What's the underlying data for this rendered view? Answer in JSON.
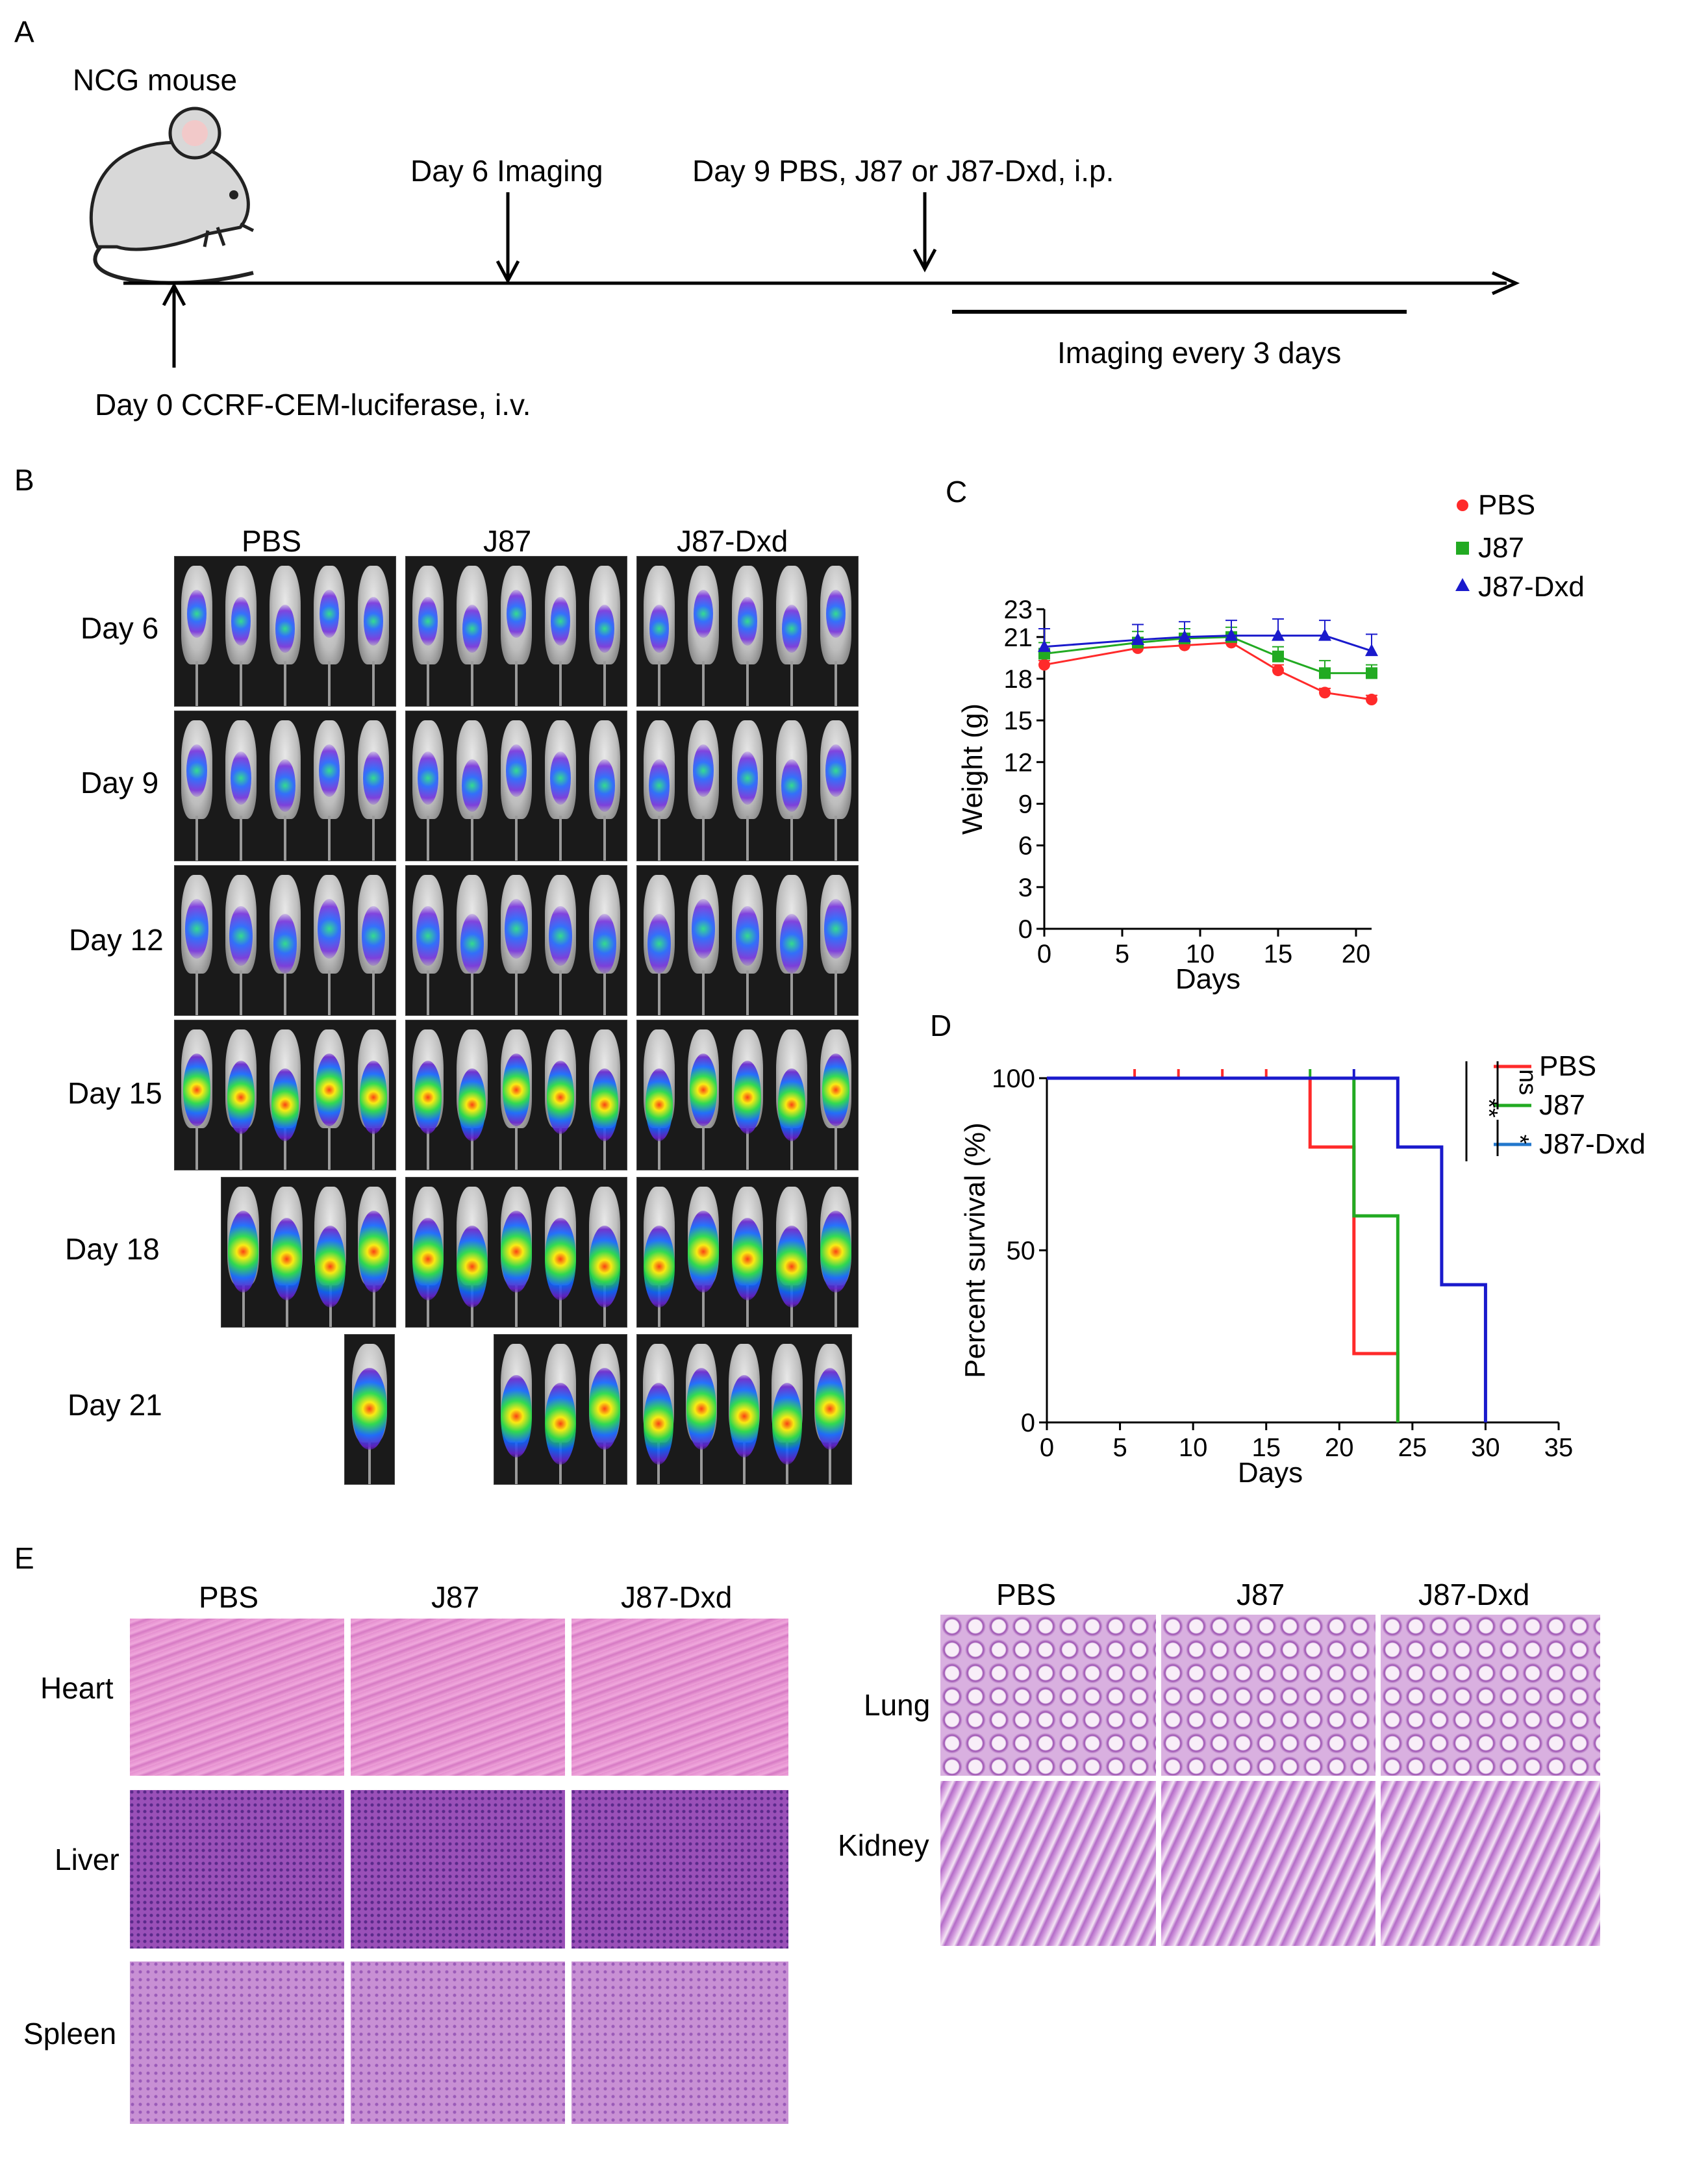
{
  "panelA": {
    "letter": "A",
    "mouse_label": "NCG mouse",
    "day0": "Day 0 CCRF-CEM-luciferase, i.v.",
    "day6": "Day 6 Imaging",
    "day9": "Day 9 PBS, J87 or J87-Dxd, i.p.",
    "imaging": "Imaging every 3 days"
  },
  "panelB": {
    "letter": "B",
    "groups": [
      "PBS",
      "J87",
      "J87-Dxd"
    ],
    "days": [
      "Day 6",
      "Day 9",
      "Day 12",
      "Day 15",
      "Day 18",
      "Day 21"
    ]
  },
  "panelC": {
    "letter": "C",
    "legend": [
      "PBS",
      "J87",
      "J87-Dxd"
    ]
  },
  "panelD": {
    "letter": "D",
    "legend": [
      "PBS",
      "J87",
      "J87-Dxd"
    ],
    "sig": {
      "ns": "ns",
      "double": "**",
      "single": "*"
    }
  },
  "panelE": {
    "letter": "E",
    "groups": [
      "PBS",
      "J87",
      "J87-Dxd"
    ],
    "left_organs": [
      "Heart",
      "Liver",
      "Spleen"
    ],
    "right_organs": [
      "Lung",
      "Kidney"
    ]
  },
  "colors": {
    "pbs": "#ff2a2a",
    "j87": "#22aa22",
    "dxd": "#1a1acc",
    "dxd_legend": "#2277cc"
  },
  "chart_data": [
    {
      "type": "line",
      "title": "",
      "xlabel": "Days",
      "ylabel": "Weight (g)",
      "xlim": [
        0,
        21
      ],
      "ylim": [
        0,
        23
      ],
      "xticks": [
        0,
        5,
        10,
        15,
        20
      ],
      "yticks": [
        0,
        3,
        6,
        9,
        12,
        15,
        18,
        21,
        23
      ],
      "x": [
        0,
        6,
        9,
        12,
        15,
        18,
        21
      ],
      "series": [
        {
          "name": "PBS",
          "marker": "circle",
          "values": [
            19.0,
            20.2,
            20.4,
            20.6,
            18.6,
            17.0,
            16.5
          ],
          "err": [
            0.3,
            0.3,
            0.3,
            0.3,
            0.4,
            0.3,
            0.3
          ]
        },
        {
          "name": "J87",
          "marker": "square",
          "values": [
            19.8,
            20.6,
            20.9,
            21.0,
            19.6,
            18.4,
            18.4
          ],
          "err": [
            0.8,
            0.8,
            0.7,
            0.7,
            0.7,
            0.9,
            0.6
          ]
        },
        {
          "name": "J87-Dxd",
          "marker": "triangle",
          "values": [
            20.3,
            20.8,
            21.0,
            21.1,
            21.1,
            21.1,
            20.0
          ],
          "err": [
            1.3,
            1.1,
            1.1,
            1.1,
            1.2,
            1.1,
            1.2
          ]
        }
      ]
    },
    {
      "type": "line",
      "title": "",
      "xlabel": "Days",
      "ylabel": "Percent survival (%)",
      "xlim": [
        0,
        35
      ],
      "ylim": [
        0,
        100
      ],
      "xticks": [
        0,
        5,
        10,
        15,
        20,
        25,
        30,
        35
      ],
      "yticks": [
        0,
        50,
        100
      ],
      "series": [
        {
          "name": "PBS",
          "steps": [
            [
              0,
              100
            ],
            [
              18,
              100
            ],
            [
              18,
              80
            ],
            [
              21,
              80
            ],
            [
              21,
              20
            ],
            [
              24,
              20
            ],
            [
              24,
              0
            ]
          ],
          "censor": [
            6,
            9,
            12,
            15
          ]
        },
        {
          "name": "J87",
          "steps": [
            [
              0,
              100
            ],
            [
              21,
              100
            ],
            [
              21,
              60
            ],
            [
              24,
              60
            ],
            [
              24,
              0
            ]
          ],
          "censor": [
            18
          ]
        },
        {
          "name": "J87-Dxd",
          "steps": [
            [
              0,
              100
            ],
            [
              24,
              100
            ],
            [
              24,
              80
            ],
            [
              27,
              80
            ],
            [
              27,
              40
            ],
            [
              30,
              40
            ],
            [
              30,
              0
            ]
          ],
          "censor": [
            21
          ]
        }
      ]
    }
  ]
}
